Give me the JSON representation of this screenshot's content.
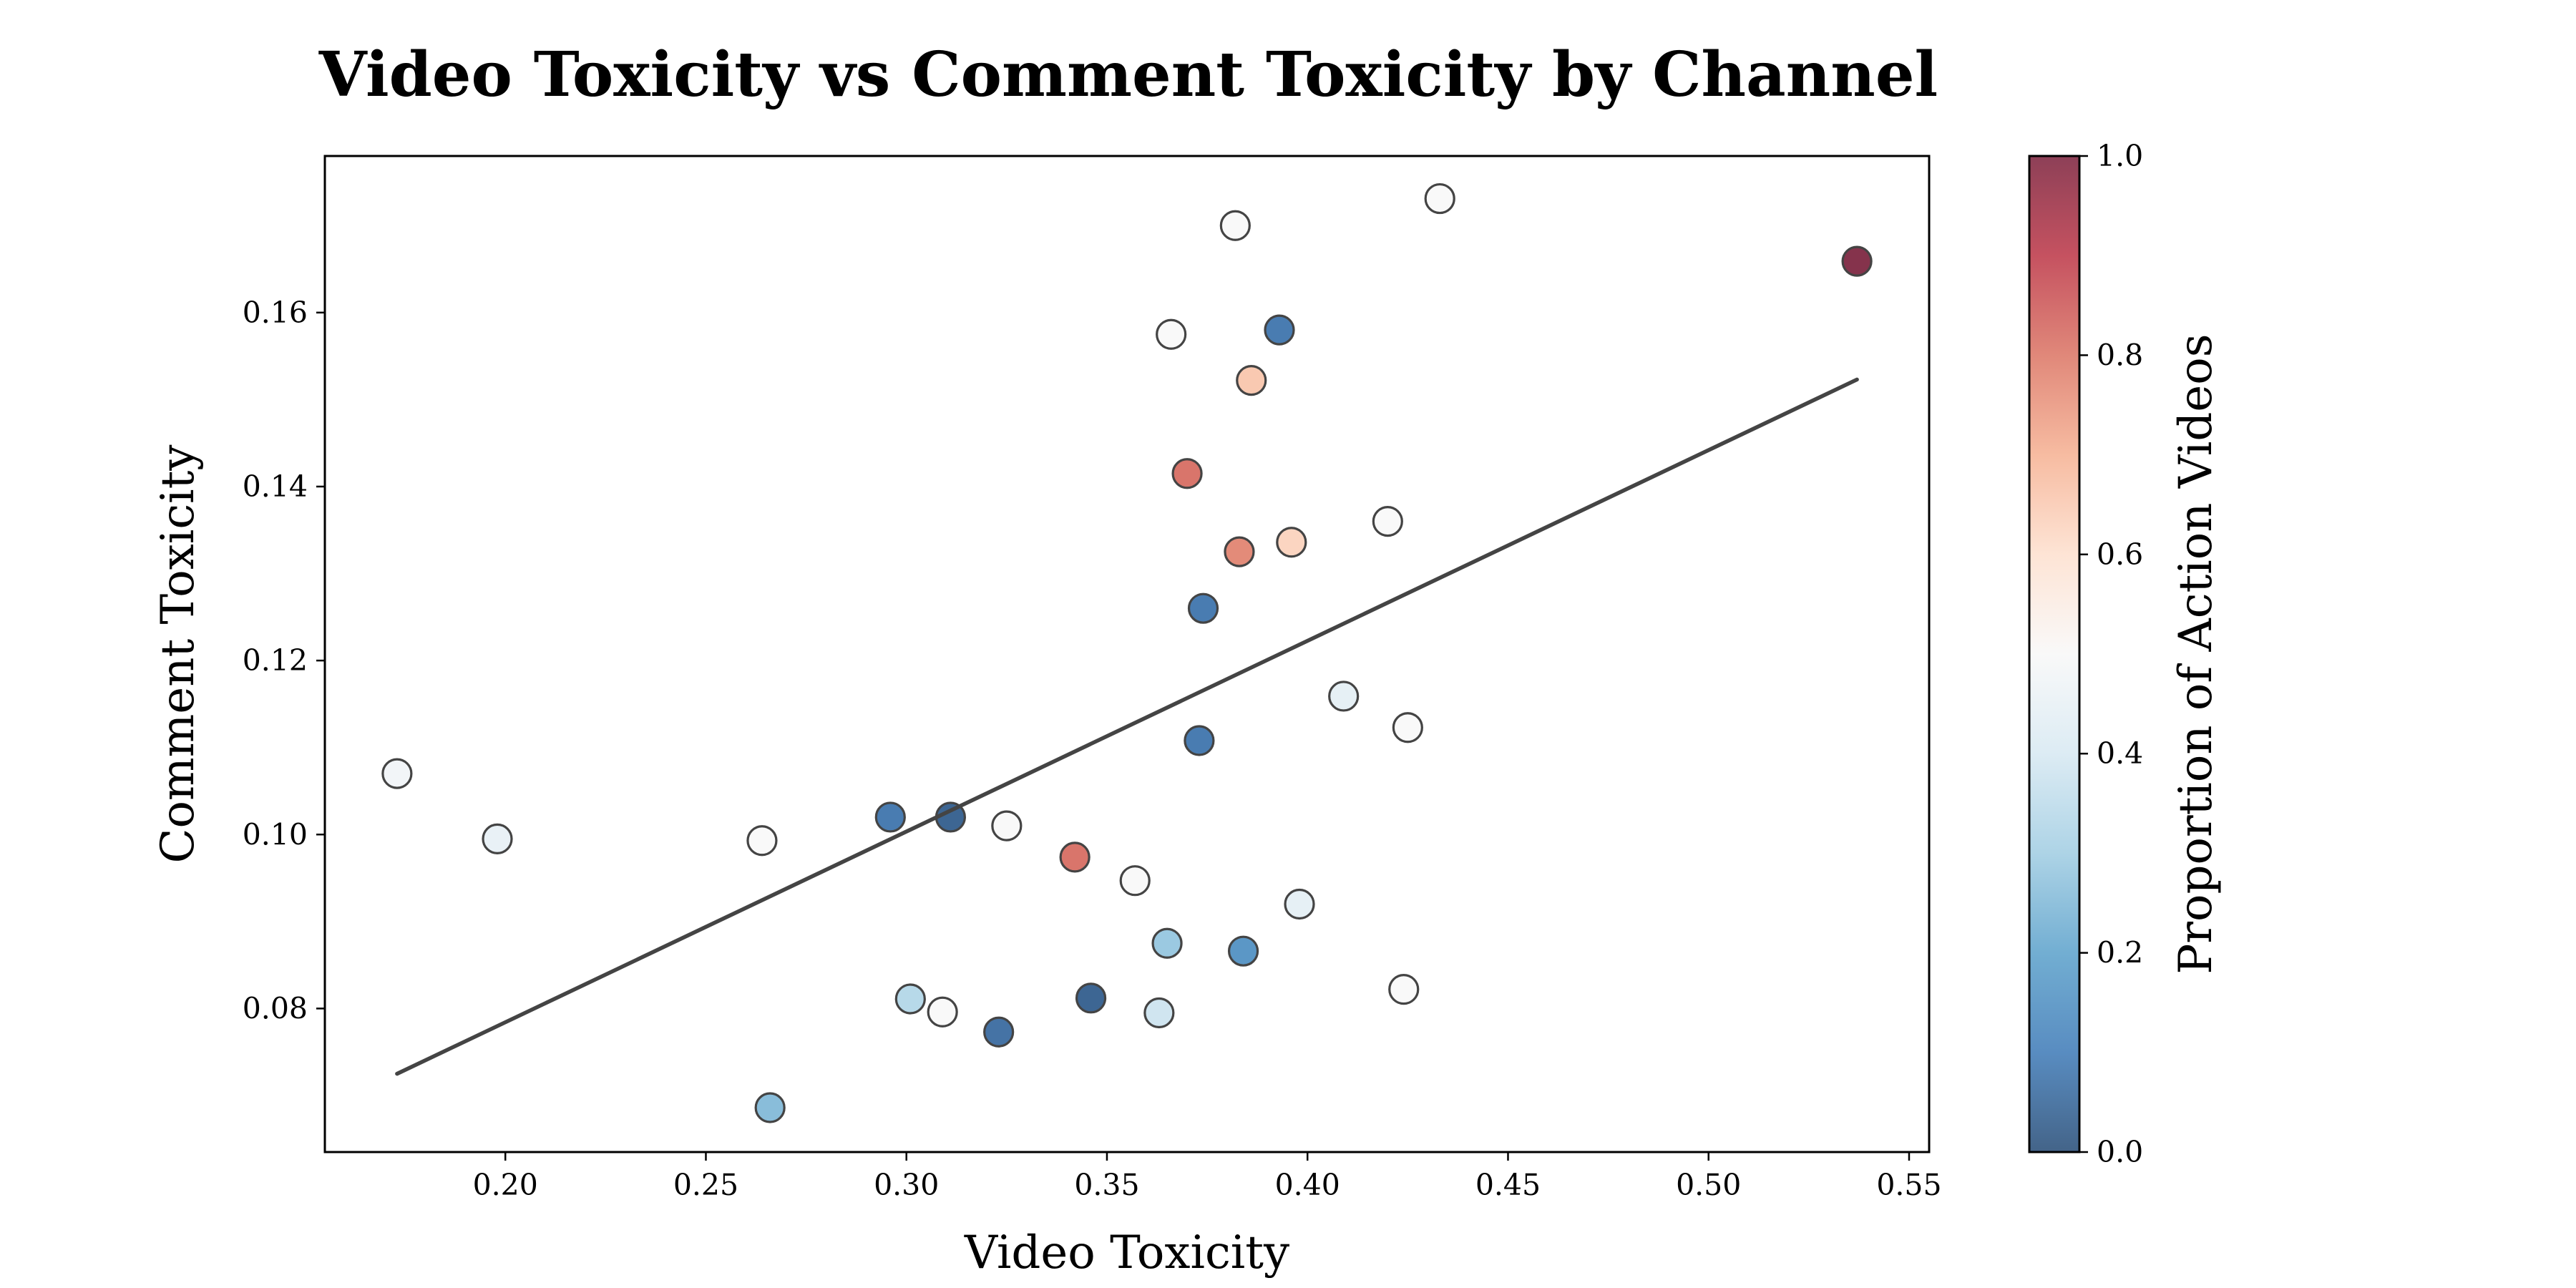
{
  "chart_data": {
    "type": "scatter",
    "title": "Video Toxicity vs Comment Toxicity by Channel",
    "xlabel": "Video Toxicity",
    "ylabel": "Comment Toxicity",
    "xlim": [
      0.155,
      0.555
    ],
    "ylim": [
      0.0635,
      0.178
    ],
    "x_ticks": [
      "0.20",
      "0.25",
      "0.30",
      "0.35",
      "0.40",
      "0.45",
      "0.50",
      "0.55"
    ],
    "y_ticks": [
      "0.08",
      "0.10",
      "0.12",
      "0.14",
      "0.16"
    ],
    "grid": false,
    "colorbar": {
      "label": "Proportion of Action Videos",
      "colormap": "RdBu_r",
      "range": [
        0.0,
        1.0
      ],
      "ticks": [
        "0.0",
        "0.2",
        "0.4",
        "0.6",
        "0.8",
        "1.0"
      ]
    },
    "points": [
      {
        "x": 0.173,
        "y": 0.107,
        "c": 0.48
      },
      {
        "x": 0.198,
        "y": 0.0995,
        "c": 0.45
      },
      {
        "x": 0.264,
        "y": 0.0993,
        "c": 0.5
      },
      {
        "x": 0.266,
        "y": 0.0686,
        "c": 0.25
      },
      {
        "x": 0.296,
        "y": 0.102,
        "c": 0.08
      },
      {
        "x": 0.301,
        "y": 0.0811,
        "c": 0.33
      },
      {
        "x": 0.309,
        "y": 0.0796,
        "c": 0.5
      },
      {
        "x": 0.311,
        "y": 0.102,
        "c": 0.03
      },
      {
        "x": 0.323,
        "y": 0.0773,
        "c": 0.06
      },
      {
        "x": 0.325,
        "y": 0.101,
        "c": 0.5
      },
      {
        "x": 0.342,
        "y": 0.0974,
        "c": 0.82
      },
      {
        "x": 0.346,
        "y": 0.0812,
        "c": 0.03
      },
      {
        "x": 0.357,
        "y": 0.0947,
        "c": 0.5
      },
      {
        "x": 0.363,
        "y": 0.0795,
        "c": 0.38
      },
      {
        "x": 0.365,
        "y": 0.0875,
        "c": 0.28
      },
      {
        "x": 0.366,
        "y": 0.1575,
        "c": 0.5
      },
      {
        "x": 0.37,
        "y": 0.1415,
        "c": 0.82
      },
      {
        "x": 0.373,
        "y": 0.1108,
        "c": 0.08
      },
      {
        "x": 0.374,
        "y": 0.126,
        "c": 0.08
      },
      {
        "x": 0.382,
        "y": 0.17,
        "c": 0.5
      },
      {
        "x": 0.383,
        "y": 0.1325,
        "c": 0.78
      },
      {
        "x": 0.384,
        "y": 0.0866,
        "c": 0.15
      },
      {
        "x": 0.386,
        "y": 0.1522,
        "c": 0.66
      },
      {
        "x": 0.393,
        "y": 0.158,
        "c": 0.08
      },
      {
        "x": 0.396,
        "y": 0.1336,
        "c": 0.63
      },
      {
        "x": 0.398,
        "y": 0.092,
        "c": 0.44
      },
      {
        "x": 0.409,
        "y": 0.1159,
        "c": 0.44
      },
      {
        "x": 0.42,
        "y": 0.136,
        "c": 0.5
      },
      {
        "x": 0.424,
        "y": 0.0822,
        "c": 0.5
      },
      {
        "x": 0.425,
        "y": 0.1123,
        "c": 0.5
      },
      {
        "x": 0.433,
        "y": 0.1731,
        "c": 0.5
      },
      {
        "x": 0.537,
        "y": 0.1659,
        "c": 1.0
      }
    ],
    "trendline": {
      "x": [
        0.173,
        0.537
      ],
      "y": [
        0.0725,
        0.1523
      ]
    }
  }
}
